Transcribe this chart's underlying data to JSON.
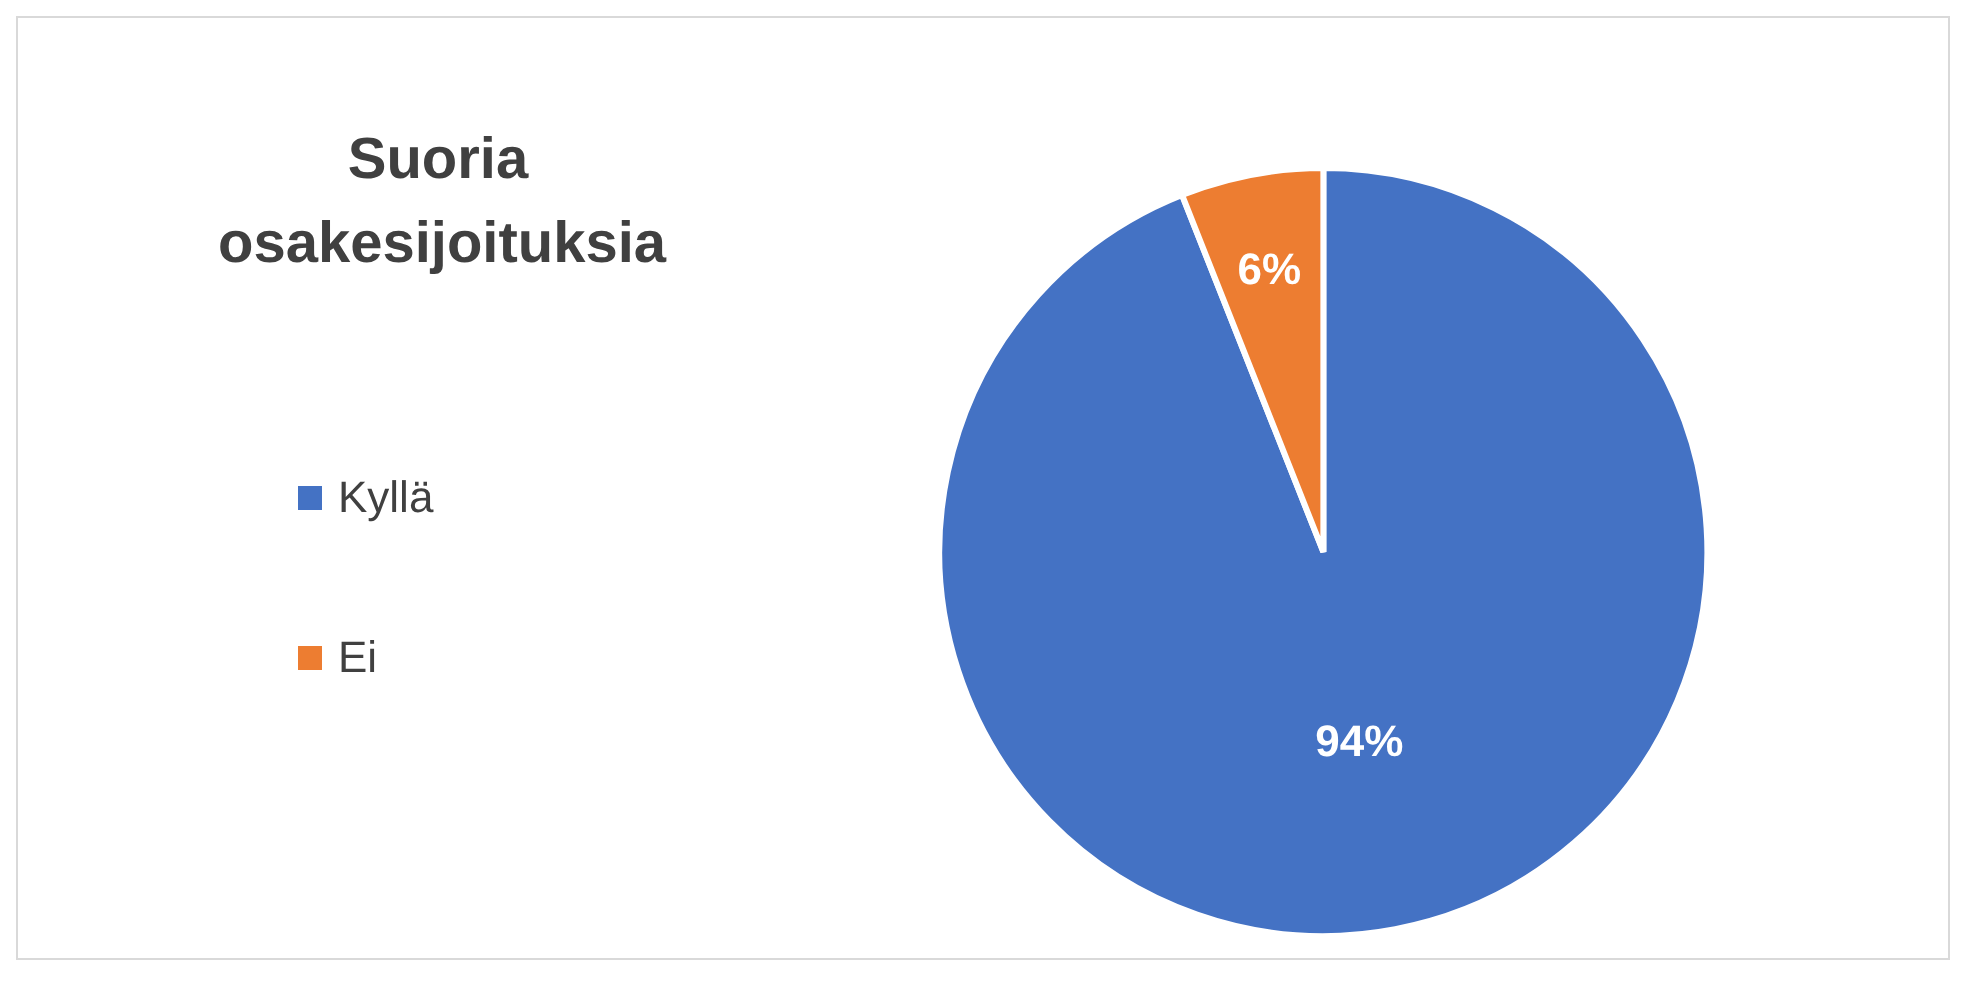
{
  "chart_data": {
    "type": "pie",
    "title": "Suoria osakesijoituksia",
    "categories": [
      "Kyllä",
      "Ei"
    ],
    "values": [
      94,
      6
    ],
    "colors": [
      "#4472c4",
      "#ed7d31"
    ],
    "value_labels": [
      "94%",
      "6%"
    ],
    "legend": "left"
  }
}
